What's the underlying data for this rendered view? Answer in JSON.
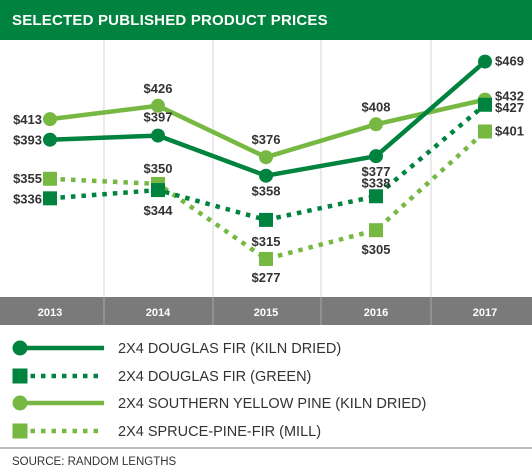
{
  "chart_data": {
    "type": "line",
    "title": "SELECTED PUBLISHED PRODUCT PRICES",
    "categories": [
      "2013",
      "2014",
      "2015",
      "2016",
      "2017"
    ],
    "series": [
      {
        "name": "2X4 DOUGLAS FIR (KILN DRIED)",
        "values": [
          393,
          397,
          358,
          377,
          469
        ],
        "labels": [
          "$393",
          "$397",
          "$358",
          "$377",
          "$469"
        ],
        "color": "#00833e",
        "line_style": "solid",
        "marker": "circle"
      },
      {
        "name": "2X4 DOUGLAS FIR (GREEN)",
        "values": [
          336,
          344,
          315,
          338,
          427
        ],
        "labels": [
          "$336",
          "$344",
          "$315",
          "$338",
          "$427"
        ],
        "color": "#00833e",
        "line_style": "dotted",
        "marker": "square"
      },
      {
        "name": "2X4 SOUTHERN YELLOW PINE (KILN DRIED)",
        "values": [
          413,
          426,
          376,
          408,
          432
        ],
        "labels": [
          "$413",
          "$426",
          "$376",
          "$408",
          "$432"
        ],
        "color": "#77b843",
        "line_style": "solid",
        "marker": "circle"
      },
      {
        "name": "2X4 SPRUCE-PINE-FIR (MILL)",
        "values": [
          355,
          350,
          277,
          305,
          401
        ],
        "labels": [
          "$355",
          "$350",
          "$277",
          "$305",
          "$401"
        ],
        "color": "#77b843",
        "line_style": "dotted",
        "marker": "square"
      }
    ],
    "ylim": [
      240,
      490
    ],
    "grid": "vertical",
    "legend_position": "bottom",
    "source": "SOURCE: RANDOM LENGTHS"
  }
}
